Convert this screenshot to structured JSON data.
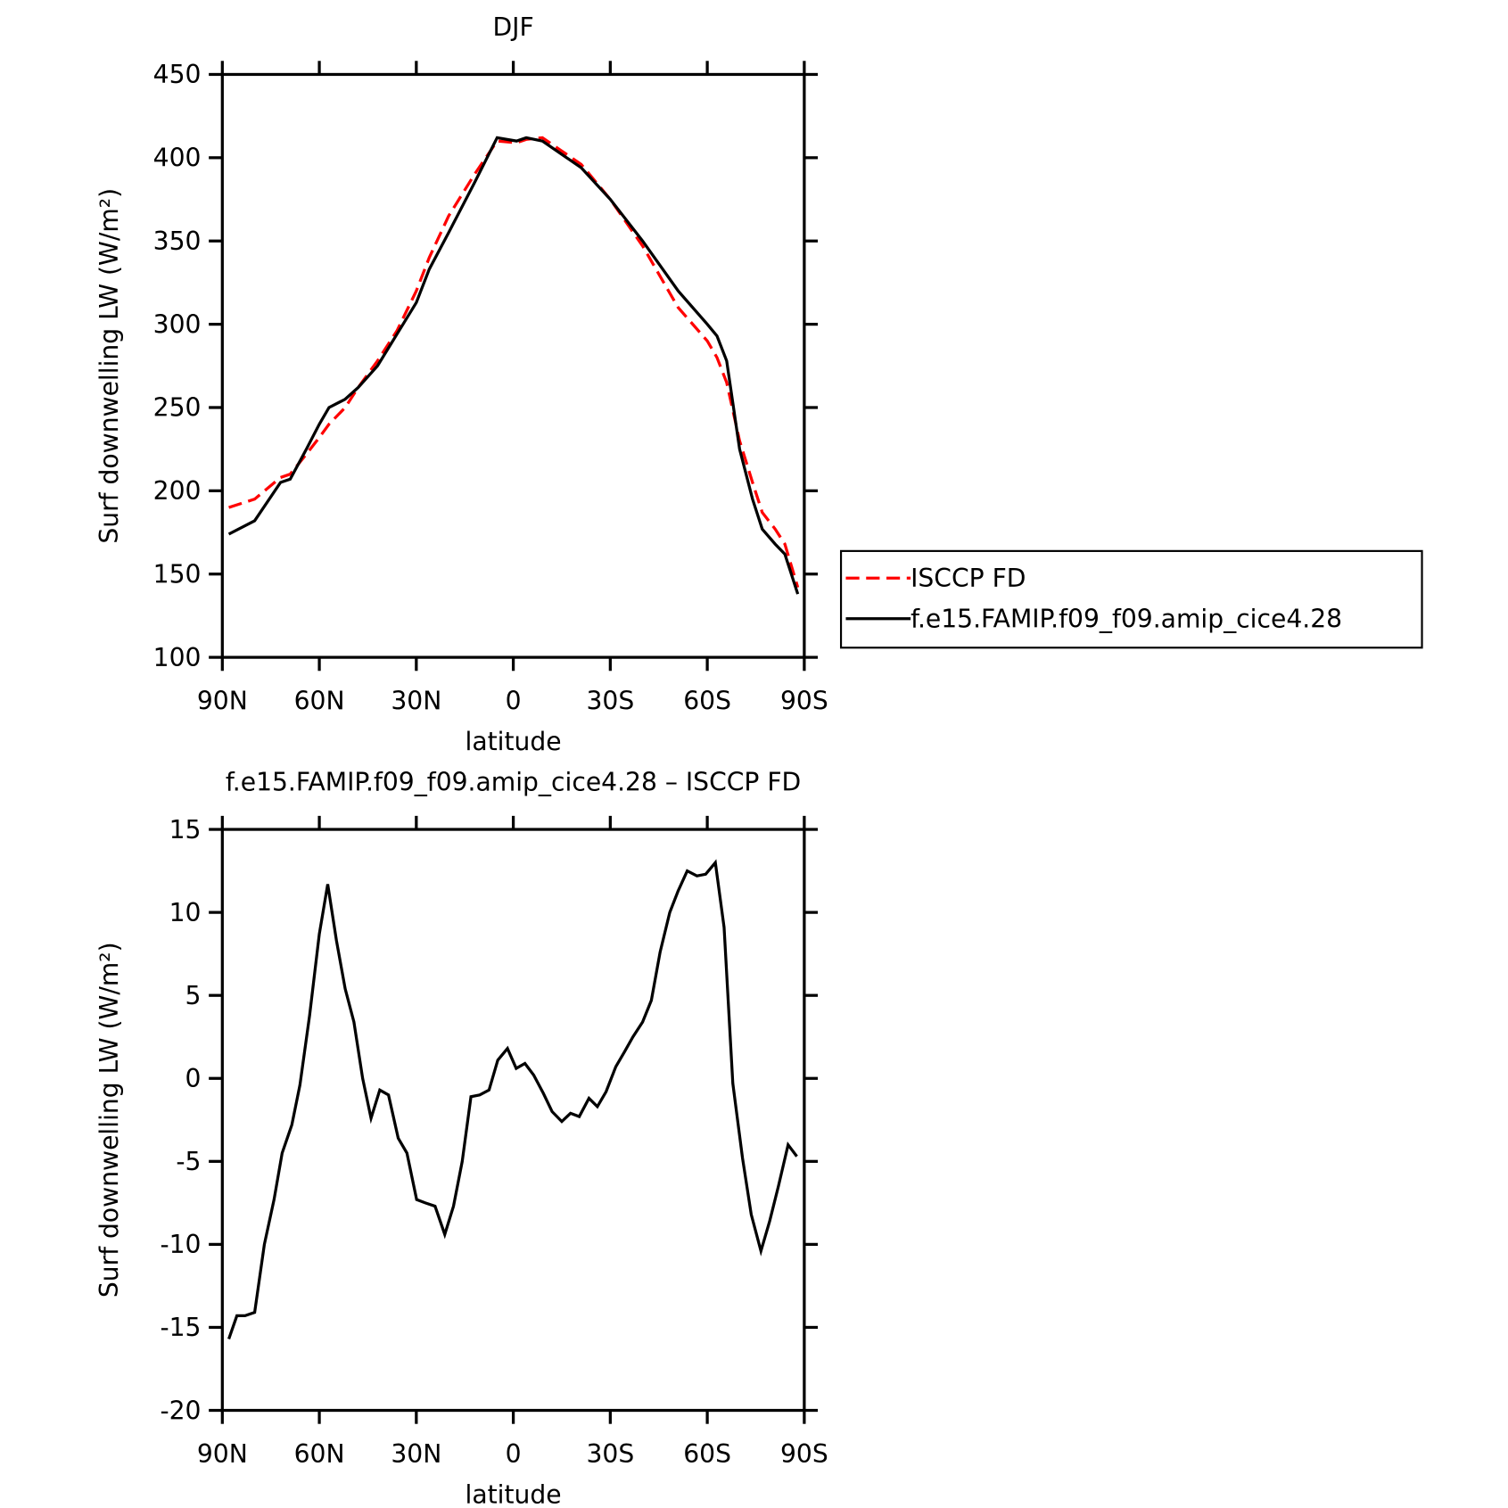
{
  "chart_data": [
    {
      "type": "line",
      "title": "DJF",
      "xlabel": "latitude",
      "ylabel": "Surf downwelling LW (W/m²)",
      "x": [
        88,
        80,
        72,
        69,
        64,
        60,
        57,
        52,
        48,
        42,
        36,
        30,
        26,
        20,
        12,
        5,
        -1,
        -4,
        -9,
        -21,
        -30,
        -40,
        -51,
        -60,
        -63,
        -66,
        -70,
        -74,
        -77,
        -81,
        -84,
        -88
      ],
      "series": [
        {
          "name": "ISCCP FD",
          "color": "#ff0000",
          "line_style": "dashed",
          "values": [
            190,
            195,
            208,
            210,
            222,
            232,
            240,
            250,
            262,
            278,
            296,
            320,
            340,
            365,
            390,
            410,
            409,
            411,
            412,
            396,
            375,
            347,
            310,
            290,
            280,
            265,
            230,
            205,
            187,
            177,
            168,
            142
          ]
        },
        {
          "name": "f.e15.FAMIP.f09_f09.amip_cice4.28",
          "color": "#000000",
          "line_style": "solid",
          "values": [
            174,
            182,
            205,
            207,
            225,
            240,
            250,
            255,
            262,
            275,
            294,
            313,
            333,
            355,
            385,
            412,
            410,
            412,
            410,
            394,
            375,
            350,
            320,
            300,
            293,
            278,
            225,
            195,
            177,
            168,
            162,
            138
          ]
        }
      ],
      "xlim": [
        90,
        -90
      ],
      "xticks": [
        {
          "value": 90,
          "label": "90N"
        },
        {
          "value": 60,
          "label": "60N"
        },
        {
          "value": 30,
          "label": "30N"
        },
        0,
        {
          "value": -30,
          "label": "30S"
        },
        {
          "value": -60,
          "label": "60S"
        },
        {
          "value": -90,
          "label": "90S"
        }
      ],
      "ylim": [
        100,
        450
      ],
      "yticks": [
        100,
        150,
        200,
        250,
        300,
        350,
        400,
        450
      ],
      "legend": "right"
    },
    {
      "type": "line",
      "title": "f.e15.FAMIP.f09_f09.amip_cice4.28 – ISCCP FD",
      "xlabel": "latitude",
      "ylabel": "Surf downwelling LW (W/m²)",
      "x": [
        88,
        85.5,
        83,
        80,
        77,
        74,
        71.5,
        68.5,
        66,
        63,
        60,
        57.4,
        54.7,
        52,
        49.3,
        46.6,
        44,
        41.3,
        38.6,
        35.6,
        32.9,
        29.9,
        27.2,
        24.2,
        21.2,
        18.5,
        15.8,
        13.1,
        10.4,
        7.5,
        4.8,
        1.8,
        -0.9,
        -3.6,
        -6.3,
        -9.3,
        -12,
        -15,
        -17.7,
        -20.4,
        -23.4,
        -26,
        -28.7,
        -31.7,
        -34.4,
        -37,
        -40,
        -42.7,
        -45.4,
        -48.4,
        -51,
        -53.8,
        -56.8,
        -59.5,
        -62.5,
        -65.2,
        -67.9,
        -70.9,
        -73.6,
        -76.6,
        -79.3,
        -82,
        -85,
        -87.7
      ],
      "series": [
        {
          "name": "f.e15.FAMIP.f09_f09.amip_cice4.28 – ISCCP FD",
          "color": "#000000",
          "line_style": "solid",
          "values": [
            -15.7,
            -14.3,
            -14.3,
            -14.1,
            -10.0,
            -7.3,
            -4.5,
            -2.8,
            -0.4,
            3.8,
            8.7,
            11.7,
            8.3,
            5.4,
            3.4,
            0,
            -2.4,
            -0.7,
            -1.0,
            -3.6,
            -4.5,
            -7.3,
            -7.5,
            -7.7,
            -9.4,
            -7.7,
            -5.0,
            -1.1,
            -1.0,
            -0.7,
            1.1,
            1.8,
            0.6,
            0.9,
            0.2,
            -0.9,
            -2.0,
            -2.6,
            -2.1,
            -2.3,
            -1.2,
            -1.7,
            -0.8,
            0.7,
            1.6,
            2.5,
            3.4,
            4.7,
            7.6,
            10.0,
            11.3,
            12.5,
            12.2,
            12.3,
            13.0,
            9.1,
            -0.3,
            -4.8,
            -8.2,
            -10.4,
            -8.6,
            -6.5,
            -4.0,
            -4.7
          ]
        }
      ],
      "xlim": [
        90,
        -90
      ],
      "xticks": [
        {
          "value": 90,
          "label": "90N"
        },
        {
          "value": 60,
          "label": "60N"
        },
        {
          "value": 30,
          "label": "30N"
        },
        0,
        {
          "value": -30,
          "label": "30S"
        },
        {
          "value": -60,
          "label": "60S"
        },
        {
          "value": -90,
          "label": "90S"
        }
      ],
      "ylim": [
        -20,
        15
      ],
      "yticks": [
        -20,
        -15,
        -10,
        -5,
        0,
        5,
        10,
        15
      ]
    }
  ]
}
